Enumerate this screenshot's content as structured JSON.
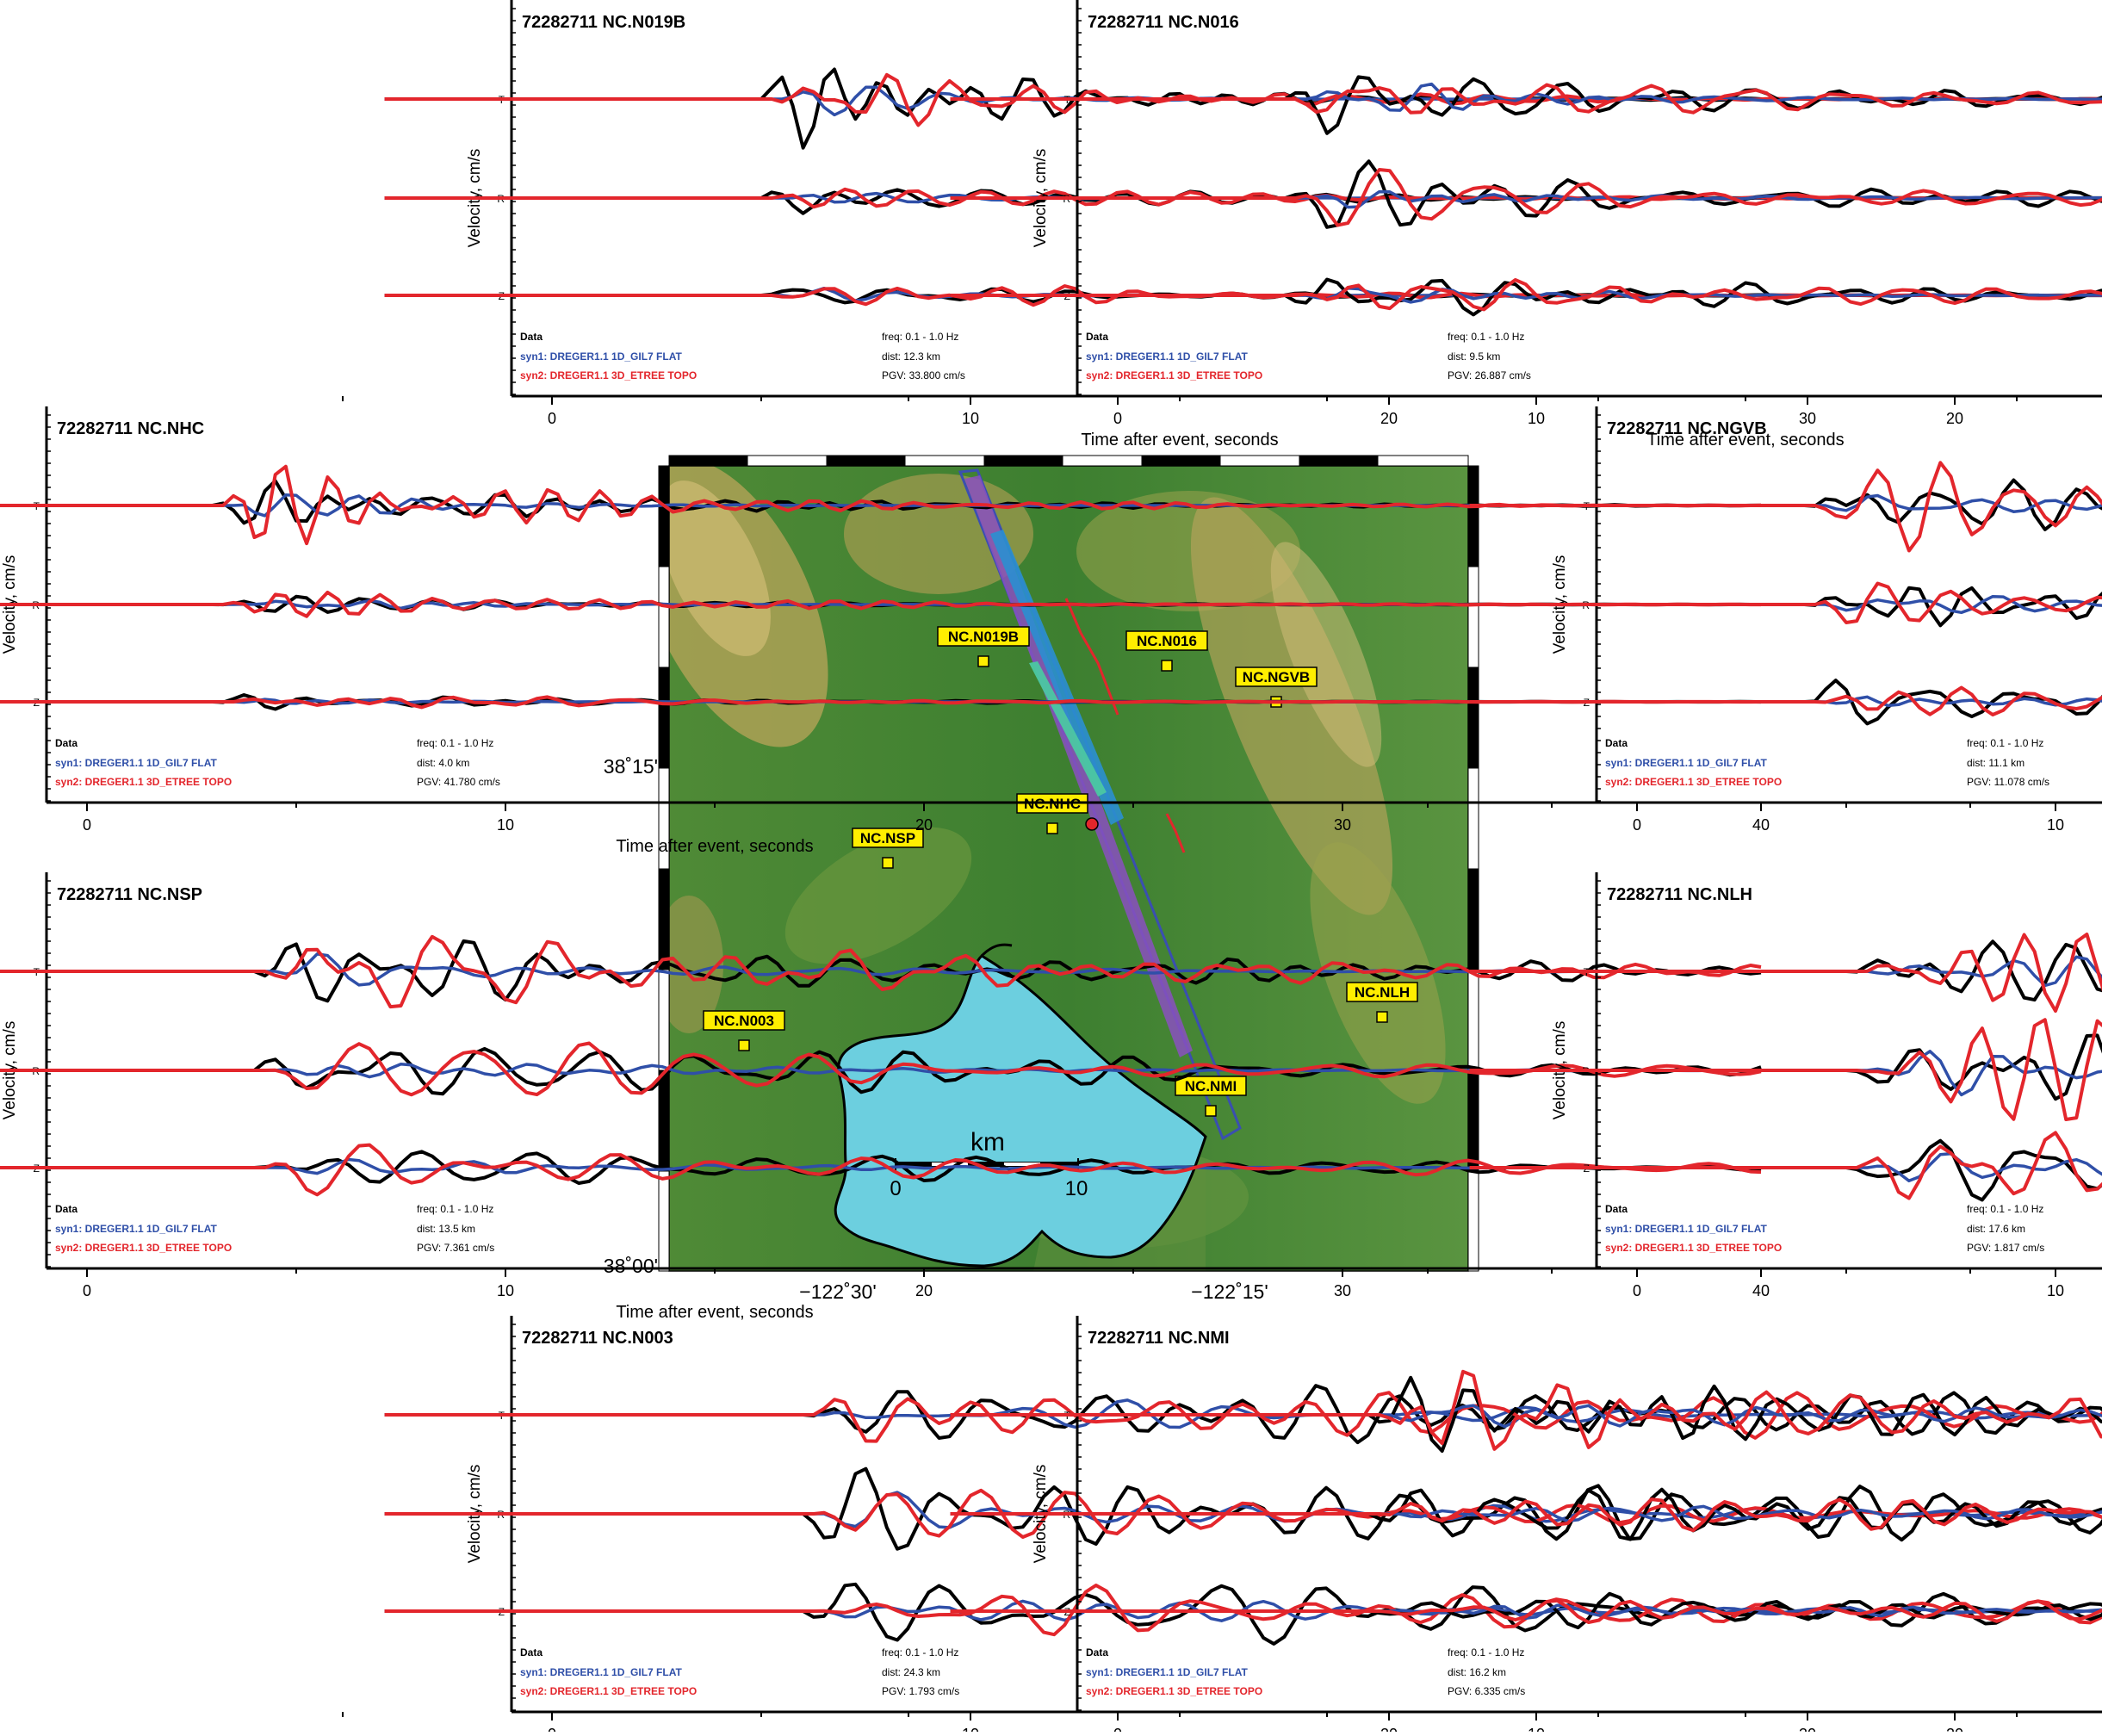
{
  "event_id": "72282711",
  "colors": {
    "data": "#000000",
    "syn1": "#2f4fa8",
    "syn2": "#e3262c",
    "lake": "#6ccfdf",
    "station": "#ffee00",
    "epicenter": "#e3262c",
    "fault_box": "#3a4fb0"
  },
  "panel_text": {
    "components": [
      "T",
      "R",
      "Z"
    ],
    "ylabel": "Velocity, cm/s",
    "xlabel": "Time after event, seconds",
    "legend_data": "Data",
    "legend_syn1": "syn1: DREGER1.1 1D_GIL7 FLAT",
    "legend_syn2": "syn2: DREGER1.1 3D_ETREE TOPO",
    "freq": "freq: 0.1 - 1.0 Hz",
    "xticks": [
      "0",
      "10",
      "20",
      "30",
      "40"
    ]
  },
  "panels": [
    {
      "station": "NC.N019B",
      "title": "72282711 NC.N019B",
      "dist": "dist: 12.3 km",
      "pgv": "PGV: 33.800 cm/s"
    },
    {
      "station": "NC.N016",
      "title": "72282711 NC.N016",
      "dist": "dist: 9.5 km",
      "pgv": "PGV: 26.887 cm/s"
    },
    {
      "station": "NC.NHC",
      "title": "72282711 NC.NHC",
      "dist": "dist: 4.0 km",
      "pgv": "PGV: 41.780 cm/s"
    },
    {
      "station": "NC.NGVB",
      "title": "72282711 NC.NGVB",
      "dist": "dist: 11.1 km",
      "pgv": "PGV: 11.078 cm/s"
    },
    {
      "station": "NC.NSP",
      "title": "72282711 NC.NSP",
      "dist": "dist: 13.5 km",
      "pgv": "PGV: 7.361 cm/s"
    },
    {
      "station": "NC.NLH",
      "title": "72282711 NC.NLH",
      "dist": "dist: 17.6 km",
      "pgv": "PGV: 1.817 cm/s"
    },
    {
      "station": "NC.N003",
      "title": "72282711 NC.N003",
      "dist": "dist: 24.3 km",
      "pgv": "PGV: 1.793 cm/s"
    },
    {
      "station": "NC.NMI",
      "title": "72282711 NC.NMI",
      "dist": "dist: 16.2 km",
      "pgv": "PGV: 6.335 cm/s"
    }
  ],
  "map": {
    "lat_labels": [
      "38˚15'",
      "38˚00'"
    ],
    "lon_labels": [
      "−122˚30'",
      "−122˚15'"
    ],
    "scale_label": "km",
    "scale_ticks": [
      "0",
      "10"
    ],
    "stations": [
      {
        "name": "NC.N019B"
      },
      {
        "name": "NC.N016"
      },
      {
        "name": "NC.NGVB"
      },
      {
        "name": "NC.NHC"
      },
      {
        "name": "NC.NSP"
      },
      {
        "name": "NC.N003"
      },
      {
        "name": "NC.NLH"
      },
      {
        "name": "NC.NMI"
      }
    ]
  },
  "chart_data": {
    "type": "line",
    "x_label": "Time after event, seconds",
    "y_label": "Velocity, cm/s",
    "x_range": [
      -5,
      45
    ],
    "series_names": [
      "Data",
      "syn1: DREGER1.1 1D_GIL7 FLAT",
      "syn2: DREGER1.1 3D_ETREE TOPO"
    ],
    "components": [
      "T",
      "R",
      "Z"
    ],
    "stations": [
      {
        "station": "NC.N019B",
        "dist_km": 12.3,
        "pgv_cm_s": 33.8,
        "freq_hz": [
          0.1,
          1.0
        ]
      },
      {
        "station": "NC.N016",
        "dist_km": 9.5,
        "pgv_cm_s": 26.887,
        "freq_hz": [
          0.1,
          1.0
        ]
      },
      {
        "station": "NC.NHC",
        "dist_km": 4.0,
        "pgv_cm_s": 41.78,
        "freq_hz": [
          0.1,
          1.0
        ]
      },
      {
        "station": "NC.NGVB",
        "dist_km": 11.1,
        "pgv_cm_s": 11.078,
        "freq_hz": [
          0.1,
          1.0
        ]
      },
      {
        "station": "NC.NSP",
        "dist_km": 13.5,
        "pgv_cm_s": 7.361,
        "freq_hz": [
          0.1,
          1.0
        ]
      },
      {
        "station": "NC.NLH",
        "dist_km": 17.6,
        "pgv_cm_s": 1.817,
        "freq_hz": [
          0.1,
          1.0
        ]
      },
      {
        "station": "NC.N003",
        "dist_km": 24.3,
        "pgv_cm_s": 1.793,
        "freq_hz": [
          0.1,
          1.0
        ]
      },
      {
        "station": "NC.NMI",
        "dist_km": 16.2,
        "pgv_cm_s": 6.335,
        "freq_hz": [
          0.1,
          1.0
        ]
      }
    ]
  }
}
